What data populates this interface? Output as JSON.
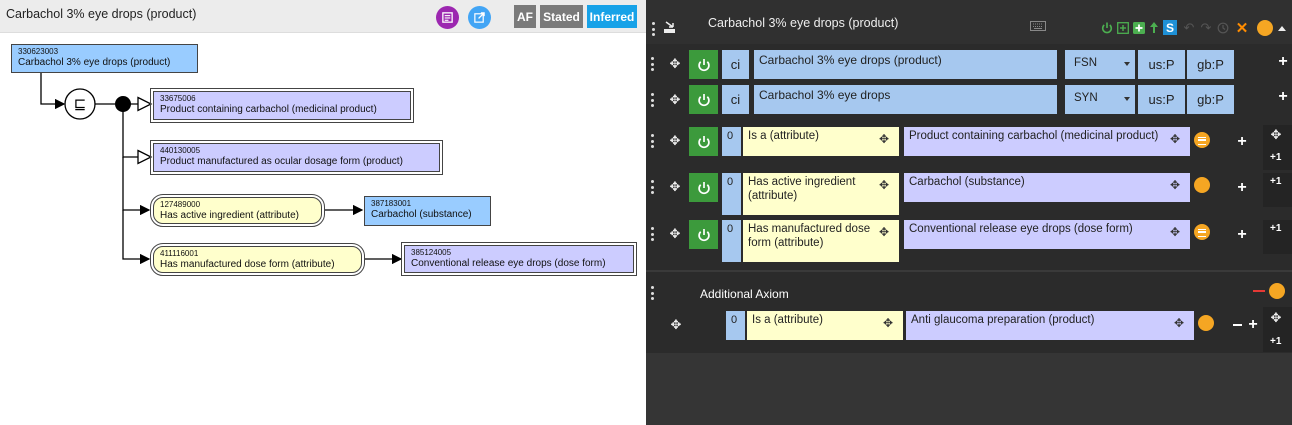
{
  "left": {
    "title": "Carbachol 3% eye drops (product)",
    "toggles": {
      "af": "AF",
      "stated": "Stated",
      "inferred": "Inferred"
    },
    "nodes": {
      "focus": {
        "sctid": "330623003",
        "label": "Carbachol 3% eye drops (product)"
      },
      "parent1": {
        "sctid": "33675006",
        "label": "Product containing carbachol (medicinal product)"
      },
      "parent2": {
        "sctid": "440130005",
        "label": "Product manufactured as ocular dosage form (product)"
      },
      "attr1": {
        "sctid": "127489000",
        "label": "Has active ingredient (attribute)"
      },
      "val1": {
        "sctid": "387183001",
        "label": "Carbachol (substance)"
      },
      "attr2": {
        "sctid": "411116001",
        "label": "Has manufactured dose form (attribute)"
      },
      "val2": {
        "sctid": "385124005",
        "label": "Conventional release eye drops (dose form)"
      }
    },
    "defined_symbol": "⊑"
  },
  "right": {
    "title": "Carbachol 3% eye drops (product)",
    "descriptions": [
      {
        "case": "ci",
        "term": "Carbachol 3% eye drops (product)",
        "type": "FSN",
        "us": "us:P",
        "gb": "gb:P"
      },
      {
        "case": "ci",
        "term": "Carbachol 3% eye drops",
        "type": "SYN",
        "us": "us:P",
        "gb": "gb:P"
      }
    ],
    "relationships": [
      {
        "group": "0",
        "type": "Is a (attribute)",
        "value": "Product containing carbachol (medicinal product)",
        "plusone": "+1"
      },
      {
        "group": "0",
        "type": "Has active ingredient (attribute)",
        "value": "Carbachol (substance)",
        "plusone": "+1"
      },
      {
        "group": "0",
        "type": "Has manufactured dose form (attribute)",
        "value": "Conventional release eye drops (dose form)",
        "plusone": "+1"
      }
    ],
    "axiom": {
      "label": "Additional Axiom",
      "relationship": {
        "group": "0",
        "type": "Is a (attribute)",
        "value": "Anti glaucoma preparation (product)",
        "plusone": "+1"
      }
    }
  },
  "colors": {
    "concept": "#99ccff",
    "defined": "#ccccff",
    "attribute": "#ffffcc",
    "stated": "#7a7a7a",
    "inferred": "#17a2e8",
    "orange": "#f5a623",
    "green": "#3c9a3c"
  }
}
